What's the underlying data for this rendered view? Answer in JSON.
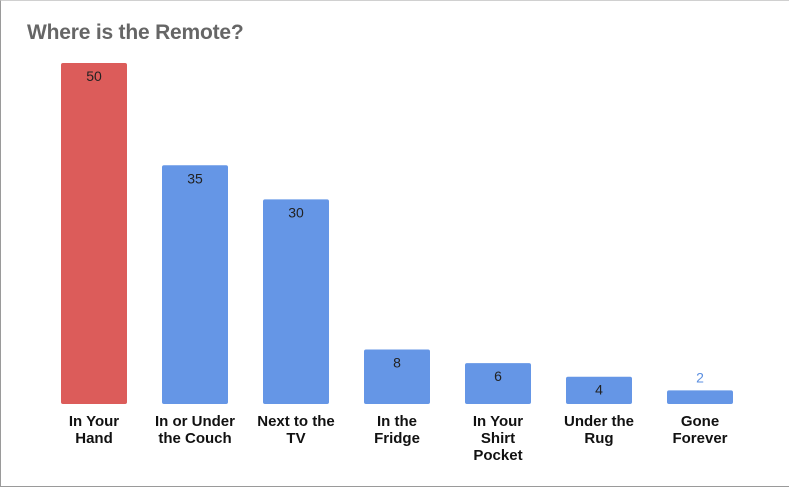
{
  "chart_data": {
    "type": "bar",
    "title": "Where is the Remote?",
    "xlabel": "",
    "ylabel": "",
    "ylim": [
      0,
      50
    ],
    "grid": false,
    "legend": "none",
    "categories": [
      "In Your Hand",
      "In or Under the Couch",
      "Next to the TV",
      "In the Fridge",
      "In Your Shirt Pocket",
      "Under the Rug",
      "Gone Forever"
    ],
    "category_lines": [
      [
        "In Your",
        "Hand"
      ],
      [
        "In or Under",
        "the Couch"
      ],
      [
        "Next to the",
        "TV"
      ],
      [
        "In the",
        "Fridge"
      ],
      [
        "In Your",
        "Shirt",
        "Pocket"
      ],
      [
        "Under the",
        "Rug"
      ],
      [
        "Gone",
        "Forever"
      ]
    ],
    "values": [
      50,
      35,
      30,
      8,
      6,
      4,
      2
    ],
    "value_labels": [
      "50",
      "35",
      "30",
      "8",
      "6",
      "4",
      "2"
    ],
    "colors": {
      "highlight": "#dc5c5a",
      "bar": "#6596e6",
      "outside_label": "#5b8fe0"
    },
    "highlight_index": 0
  }
}
